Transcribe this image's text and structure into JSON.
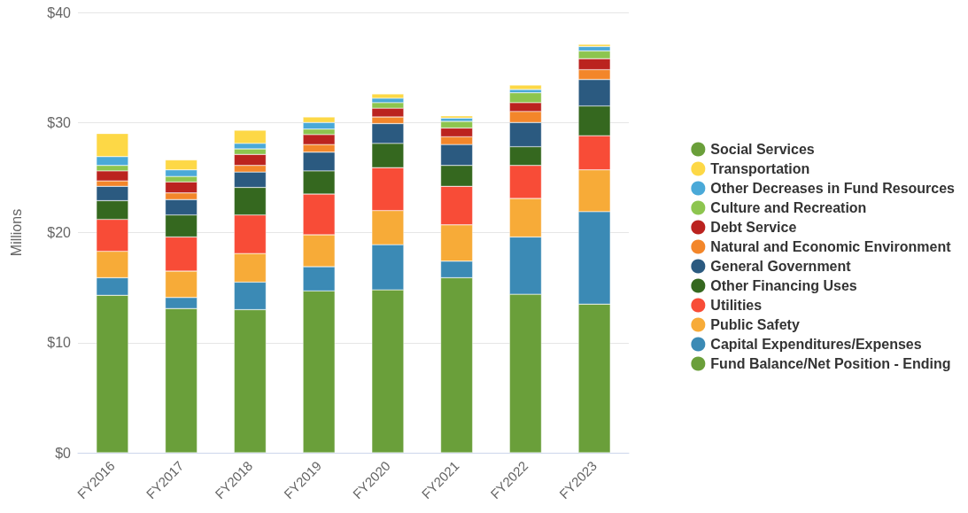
{
  "chart_data": {
    "type": "bar",
    "stacked": true,
    "ylabel": "Millions",
    "categories": [
      "FY2016",
      "FY2017",
      "FY2018",
      "FY2019",
      "FY2020",
      "FY2021",
      "FY2022",
      "FY2023"
    ],
    "ylim": [
      0,
      40
    ],
    "yticks": [
      {
        "value": 0,
        "label": "$0"
      },
      {
        "value": 10,
        "label": "$10"
      },
      {
        "value": 20,
        "label": "$20"
      },
      {
        "value": 30,
        "label": "$30"
      },
      {
        "value": 40,
        "label": "$40"
      }
    ],
    "grid": "y",
    "legend": "right",
    "marker": "circle",
    "series": [
      {
        "name": "Fund Balance/Net Position - Ending",
        "color": "#6a9f3a",
        "values": [
          14.3,
          13.1,
          13.0,
          14.7,
          14.8,
          15.9,
          14.4,
          13.5
        ]
      },
      {
        "name": "Capital Expenditures/Expenses",
        "color": "#3b8ab5",
        "values": [
          1.6,
          1.0,
          2.5,
          2.2,
          4.1,
          1.5,
          5.2,
          8.4
        ]
      },
      {
        "name": "Public Safety",
        "color": "#f7ab38",
        "values": [
          2.4,
          2.4,
          2.6,
          2.9,
          3.1,
          3.3,
          3.5,
          3.8
        ]
      },
      {
        "name": "Utilities",
        "color": "#f84c37",
        "values": [
          2.9,
          3.1,
          3.5,
          3.7,
          3.9,
          3.5,
          3.0,
          3.1
        ]
      },
      {
        "name": "Other Financing Uses",
        "color": "#35681f",
        "values": [
          1.7,
          2.0,
          2.5,
          2.1,
          2.2,
          1.9,
          1.7,
          2.7
        ]
      },
      {
        "name": "General Government",
        "color": "#2b5a80",
        "values": [
          1.3,
          1.4,
          1.4,
          1.7,
          1.8,
          1.9,
          2.2,
          2.4
        ]
      },
      {
        "name": "Natural and Economic Environment",
        "color": "#f3862a",
        "values": [
          0.5,
          0.6,
          0.6,
          0.7,
          0.6,
          0.7,
          1.0,
          0.9
        ]
      },
      {
        "name": "Debt Service",
        "color": "#bb231f",
        "values": [
          0.9,
          1.0,
          1.0,
          0.9,
          0.8,
          0.8,
          0.8,
          1.0
        ]
      },
      {
        "name": "Culture and Recreation",
        "color": "#8dc54f",
        "values": [
          0.5,
          0.5,
          0.5,
          0.5,
          0.5,
          0.6,
          0.9,
          0.7
        ]
      },
      {
        "name": "Other Decreases in Fund Resources",
        "color": "#4aa9d8",
        "values": [
          0.8,
          0.6,
          0.5,
          0.6,
          0.4,
          0.3,
          0.3,
          0.4
        ]
      },
      {
        "name": "Transportation",
        "color": "#fdd846",
        "values": [
          2.1,
          0.9,
          1.2,
          0.5,
          0.4,
          0.2,
          0.4,
          0.2
        ]
      },
      {
        "name": "Social Services",
        "color": "#6a9f3a",
        "values": [
          null,
          null,
          null,
          null,
          null,
          null,
          null,
          null
        ]
      }
    ]
  }
}
